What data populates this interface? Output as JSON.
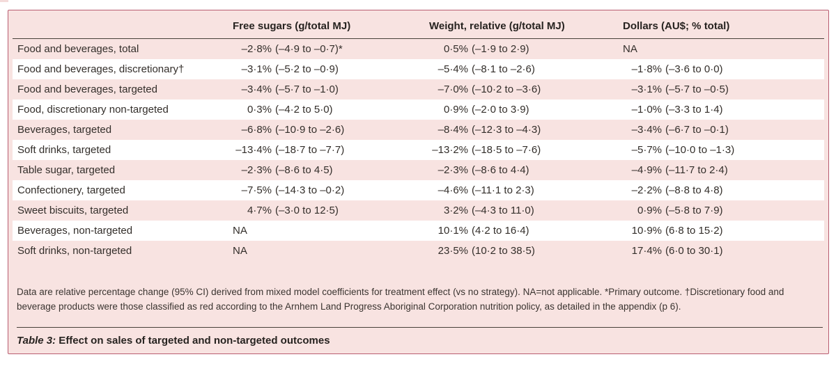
{
  "page": {
    "background": "#ffffff"
  },
  "panel": {
    "background": "#f8e3e1",
    "border_color": "#b85c70"
  },
  "table": {
    "columns": [
      {
        "key": "row-label",
        "label": ""
      },
      {
        "key": "free-sugars",
        "label": "Free sugars (g/total MJ)"
      },
      {
        "key": "weight-relative",
        "label": "Weight, relative (g/total MJ)"
      },
      {
        "key": "dollars",
        "label": "Dollars (AU$; % total)"
      }
    ],
    "rows": [
      {
        "label": "Food and beverages, total",
        "free_sugars": "–2·8% (–4·9 to –0·7)*",
        "weight": "0·5% (–1·9 to 2·9)",
        "dollars": "NA"
      },
      {
        "label": "Food and beverages, discretionary†",
        "free_sugars": "–3·1% (–5·2 to –0·9)",
        "weight": "–5·4% (–8·1 to –2·6)",
        "dollars": "–1·8% (–3·6 to 0·0)"
      },
      {
        "label": "Food and beverages, targeted",
        "free_sugars": "–3·4% (–5·7 to –1·0)",
        "weight": "–7·0% (–10·2 to –3·6)",
        "dollars": "–3·1% (–5·7 to –0·5)"
      },
      {
        "label": "Food, discretionary non-targeted",
        "free_sugars": "0·3% (–4·2 to 5·0)",
        "weight": "0·9% (–2·0 to 3·9)",
        "dollars": "–1·0% (–3·3 to 1·4)"
      },
      {
        "label": "Beverages, targeted",
        "free_sugars": "–6·8% (–10·9 to –2·6)",
        "weight": "–8·4% (–12·3 to –4·3)",
        "dollars": "–3·4% (–6·7 to –0·1)"
      },
      {
        "label": "Soft drinks, targeted",
        "free_sugars": "–13·4% (–18·7 to –7·7)",
        "weight": "–13·2% (–18·5 to –7·6)",
        "dollars": "–5·7% (–10·0 to –1·3)"
      },
      {
        "label": "Table sugar, targeted",
        "free_sugars": "–2·3% (–8·6 to 4·5)",
        "weight": "–2·3% (–8·6 to 4·4)",
        "dollars": "–4·9% (–11·7 to 2·4)"
      },
      {
        "label": "Confectionery, targeted",
        "free_sugars": "–7·5% (–14·3 to –0·2)",
        "weight": "–4·6% (–11·1 to 2·3)",
        "dollars": "–2·2% (–8·8 to 4·8)"
      },
      {
        "label": "Sweet biscuits, targeted",
        "free_sugars": "4·7% (–3·0 to 12·5)",
        "weight": "3·2% (–4·3 to 11·0)",
        "dollars": "0·9% (–5·8 to 7·9)"
      },
      {
        "label": "Beverages, non-targeted",
        "free_sugars": "NA",
        "weight": "10·1% (4·2 to 16·4)",
        "dollars": "10·9% (6·8 to 15·2)"
      },
      {
        "label": "Soft drinks, non-targeted",
        "free_sugars": "NA",
        "weight": "23·5% (10·2 to 38·5)",
        "dollars": "17·4% (6·0 to 30·1)"
      }
    ]
  },
  "footnote": "Data are relative percentage change (95% CI) derived from mixed model coefficients for treatment effect (vs no strategy). NA=not applicable. *Primary outcome. †Discretionary food and beverage products were those classified as red according to the Arnhem Land Progress Aboriginal Corporation nutrition policy, as detailed in the appendix (p 6).",
  "caption": {
    "label": "Table 3:",
    "title": " Effect on sales of targeted and non-targeted outcomes"
  }
}
